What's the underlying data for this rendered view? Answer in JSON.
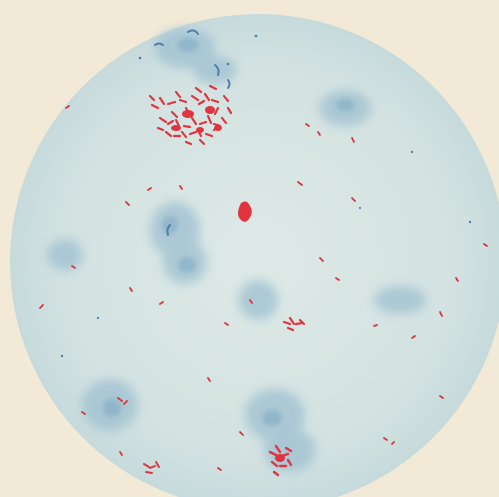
{
  "image": {
    "subject": "micrograph",
    "colors": {
      "paper": "#f2ead6",
      "field": "#d5e2e0",
      "field_edge": "#c9dbdc",
      "cell_stain": "#9dbfd0",
      "cell_stain_dark": "#7ea9c2",
      "bacteria": "#e0343f",
      "bacteria_dark": "#c8242f"
    }
  }
}
